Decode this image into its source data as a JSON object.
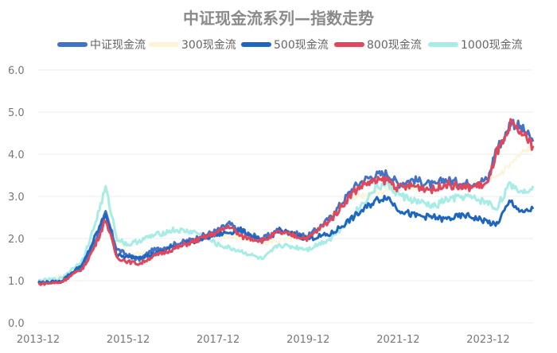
{
  "chart_data": {
    "type": "line",
    "title": "中证现金流系列—指数走势",
    "xlabel": "",
    "ylabel": "",
    "ylim": [
      0,
      6
    ],
    "yticks": [
      "0.0",
      "1.0",
      "2.0",
      "3.0",
      "4.0",
      "5.0",
      "6.0"
    ],
    "xlim": [
      "2013-12",
      "2024-12"
    ],
    "xticks": [
      "2013-12",
      "2015-12",
      "2017-12",
      "2019-12",
      "2021-12",
      "2023-12"
    ],
    "grid": "horizontal",
    "legend": "top",
    "series": [
      {
        "name": "中证现金流",
        "color": "#4472c4",
        "x": [
          "2013-12",
          "2014-06",
          "2014-12",
          "2015-03",
          "2015-06",
          "2015-09",
          "2015-12",
          "2016-03",
          "2016-06",
          "2016-12",
          "2017-06",
          "2017-12",
          "2018-03",
          "2018-06",
          "2018-12",
          "2019-04",
          "2019-12",
          "2020-06",
          "2020-12",
          "2021-03",
          "2021-06",
          "2021-09",
          "2021-12",
          "2022-04",
          "2022-10",
          "2022-12",
          "2023-06",
          "2023-12",
          "2024-02",
          "2024-05",
          "2024-06",
          "2024-09",
          "2024-12"
        ],
        "values": [
          0.95,
          0.98,
          1.35,
          1.9,
          2.6,
          1.75,
          1.6,
          1.5,
          1.7,
          1.85,
          2.0,
          2.2,
          2.35,
          2.15,
          2.0,
          2.2,
          2.05,
          2.5,
          3.2,
          3.4,
          3.5,
          3.55,
          3.3,
          3.4,
          3.25,
          3.4,
          3.3,
          3.4,
          4.1,
          4.5,
          4.8,
          4.6,
          4.3
        ]
      },
      {
        "name": "300现金流",
        "color": "#fdf3d6",
        "x": [
          "2013-12",
          "2014-12",
          "2015-06",
          "2015-12",
          "2016-12",
          "2017-12",
          "2018-12",
          "2019-12",
          "2020-12",
          "2021-12",
          "2022-12",
          "2023-12",
          "2024-12"
        ],
        "values": [
          0.95,
          1.3,
          2.5,
          1.6,
          1.8,
          2.1,
          1.9,
          2.05,
          3.0,
          3.2,
          3.25,
          3.3,
          4.25
        ]
      },
      {
        "name": "500现金流",
        "color": "#1f66c0",
        "x": [
          "2013-12",
          "2014-06",
          "2014-12",
          "2015-03",
          "2015-06",
          "2015-09",
          "2015-12",
          "2016-06",
          "2016-12",
          "2017-06",
          "2017-12",
          "2018-06",
          "2018-12",
          "2019-04",
          "2019-12",
          "2020-06",
          "2020-12",
          "2021-06",
          "2021-09",
          "2021-12",
          "2022-04",
          "2022-10",
          "2022-12",
          "2023-06",
          "2023-12",
          "2024-02",
          "2024-06",
          "2024-09",
          "2024-12"
        ],
        "values": [
          0.95,
          0.98,
          1.4,
          2.0,
          2.6,
          1.6,
          1.55,
          1.6,
          1.8,
          1.95,
          2.1,
          2.2,
          1.9,
          2.2,
          2.0,
          2.1,
          2.5,
          2.9,
          3.0,
          2.7,
          2.55,
          2.5,
          2.45,
          2.55,
          2.4,
          2.3,
          2.9,
          2.6,
          2.7
        ]
      },
      {
        "name": "800现金流",
        "color": "#e0465c",
        "x": [
          "2013-12",
          "2014-06",
          "2014-12",
          "2015-03",
          "2015-06",
          "2015-09",
          "2015-12",
          "2016-03",
          "2016-06",
          "2016-12",
          "2017-06",
          "2017-12",
          "2018-03",
          "2018-06",
          "2018-12",
          "2019-04",
          "2019-12",
          "2020-06",
          "2020-12",
          "2021-03",
          "2021-06",
          "2021-09",
          "2021-12",
          "2022-04",
          "2022-10",
          "2022-12",
          "2023-06",
          "2023-12",
          "2024-02",
          "2024-05",
          "2024-06",
          "2024-09",
          "2024-12"
        ],
        "values": [
          0.92,
          0.96,
          1.3,
          1.8,
          2.45,
          1.55,
          1.45,
          1.4,
          1.55,
          1.75,
          1.95,
          2.15,
          2.3,
          2.05,
          1.95,
          2.15,
          2.0,
          2.45,
          3.1,
          3.3,
          3.35,
          3.4,
          3.2,
          3.25,
          3.15,
          3.3,
          3.2,
          3.3,
          4.0,
          4.4,
          4.7,
          4.5,
          4.2
        ]
      },
      {
        "name": "1000现金流",
        "color": "#a8ece6",
        "x": [
          "2013-12",
          "2014-06",
          "2014-12",
          "2015-03",
          "2015-06",
          "2015-09",
          "2015-12",
          "2016-06",
          "2016-12",
          "2017-06",
          "2017-12",
          "2018-06",
          "2018-12",
          "2019-04",
          "2019-12",
          "2020-06",
          "2020-12",
          "2021-06",
          "2021-09",
          "2021-12",
          "2022-04",
          "2022-10",
          "2022-12",
          "2023-06",
          "2023-12",
          "2024-02",
          "2024-06",
          "2024-09",
          "2024-12"
        ],
        "values": [
          1.0,
          1.05,
          1.5,
          2.3,
          3.2,
          2.0,
          1.85,
          2.05,
          2.2,
          2.15,
          1.85,
          1.7,
          1.5,
          1.85,
          1.75,
          2.0,
          2.55,
          3.2,
          3.3,
          3.05,
          2.9,
          2.75,
          2.9,
          3.0,
          2.85,
          2.7,
          3.3,
          3.1,
          3.25
        ]
      }
    ]
  }
}
